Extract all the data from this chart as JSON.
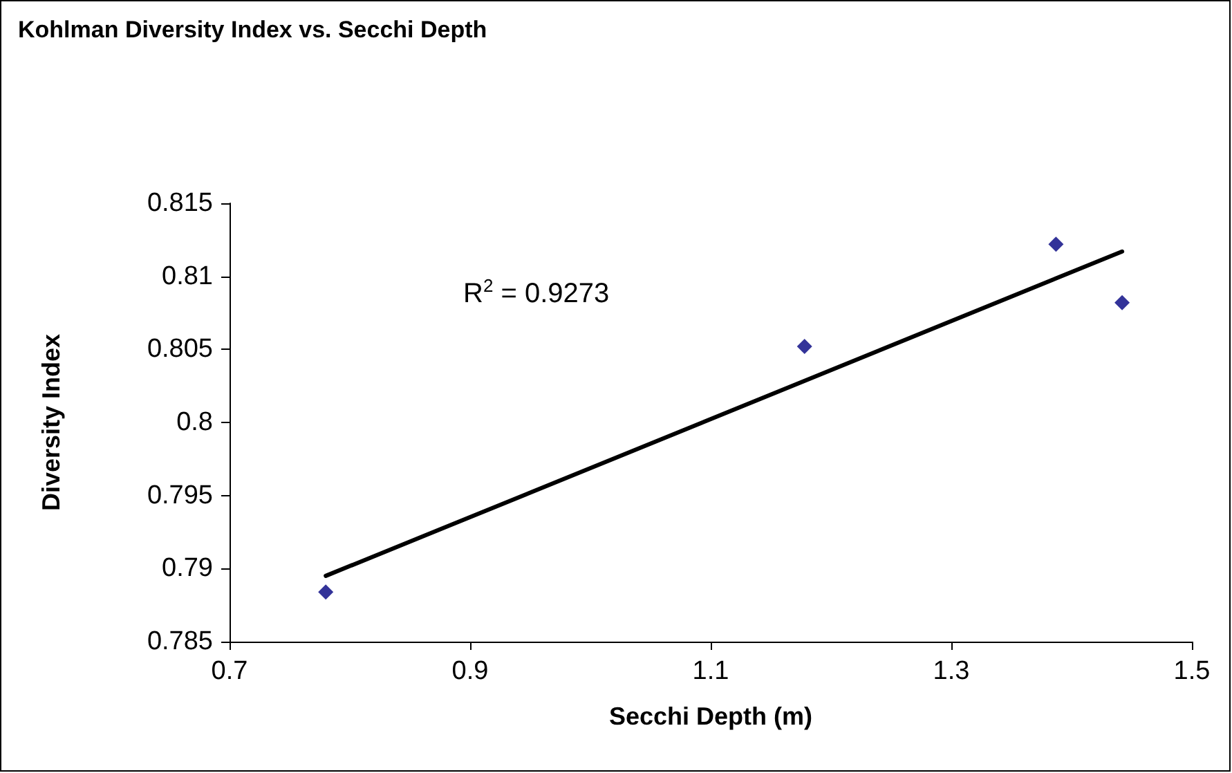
{
  "chart_data": {
    "type": "scatter",
    "title": "Kohlman Diversity Index vs. Secchi Depth",
    "xlabel": "Secchi Depth (m)",
    "ylabel": "Diversity Index",
    "x": [
      0.78,
      1.178,
      1.387,
      1.442
    ],
    "series": [
      {
        "color": "#000080",
        "values": [
          0.7884,
          0.8052,
          0.8122,
          0.8082
        ],
        "marker": "diamond"
      },
      {
        "type": "line",
        "color": "#000000",
        "x": [
          0.78,
          1.442
        ],
        "values": [
          0.7895,
          0.8117
        ],
        "marker": "none",
        "line_style": "solid"
      }
    ],
    "xlim": [
      0.7,
      1.5
    ],
    "xticks": [
      0.7,
      0.9,
      1.1,
      1.3,
      1.5
    ],
    "ylim": [
      0.785,
      0.815
    ],
    "yticks": [
      0.785,
      0.79,
      0.795,
      0.8,
      0.805,
      0.81,
      0.815
    ],
    "grid": false,
    "annotations": [
      "R$^{2}$ = 0.9273"
    ]
  }
}
